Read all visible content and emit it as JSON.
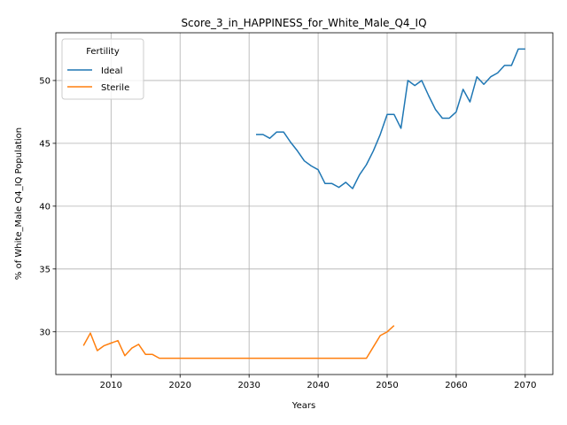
{
  "chart_data": {
    "type": "line",
    "title": "Score_3_in_HAPPINESS_for_White_Male_Q4_IQ",
    "xlabel": "Years",
    "ylabel": "% of White_Male Q4_IQ Population",
    "xlim": [
      2002,
      2074
    ],
    "ylim": [
      26.6,
      53.8
    ],
    "xticks": [
      2010,
      2020,
      2030,
      2040,
      2050,
      2060,
      2070
    ],
    "yticks": [
      30,
      35,
      40,
      45,
      50
    ],
    "grid": true,
    "legend": {
      "title": "Fertility",
      "placement": "top-left"
    },
    "colors": {
      "Ideal": "#1f77b4",
      "Sterile": "#ff7f0e"
    },
    "series": [
      {
        "name": "Ideal",
        "x": [
          2031,
          2032,
          2033,
          2034,
          2035,
          2036,
          2037,
          2038,
          2039,
          2040,
          2041,
          2042,
          2043,
          2044,
          2045,
          2046,
          2047,
          2048,
          2049,
          2050,
          2051,
          2052,
          2053,
          2054,
          2055,
          2056,
          2057,
          2058,
          2059,
          2060,
          2061,
          2062,
          2063,
          2064,
          2065,
          2066,
          2067,
          2068,
          2069,
          2070
        ],
        "y": [
          45.7,
          45.7,
          45.4,
          45.9,
          45.9,
          45.1,
          44.4,
          43.6,
          43.2,
          42.9,
          41.8,
          41.8,
          41.5,
          41.9,
          41.4,
          42.5,
          43.3,
          44.4,
          45.7,
          47.3,
          47.3,
          46.2,
          50.0,
          49.6,
          50.0,
          48.8,
          47.7,
          47.0,
          47.0,
          47.5,
          49.3,
          48.3,
          50.3,
          49.7,
          50.3,
          50.6,
          51.2,
          51.2,
          52.5,
          52.5
        ]
      },
      {
        "name": "Sterile",
        "x": [
          2006,
          2007,
          2008,
          2009,
          2010,
          2011,
          2012,
          2013,
          2014,
          2015,
          2016,
          2017,
          2018,
          2019,
          2020,
          2021,
          2022,
          2023,
          2024,
          2025,
          2026,
          2027,
          2028,
          2029,
          2030,
          2031,
          2032,
          2033,
          2034,
          2035,
          2036,
          2037,
          2038,
          2039,
          2040,
          2041,
          2042,
          2043,
          2044,
          2045,
          2046,
          2047,
          2048,
          2049,
          2050,
          2051
        ],
        "y": [
          28.9,
          29.9,
          28.5,
          28.9,
          29.1,
          29.3,
          28.1,
          28.7,
          29.0,
          28.2,
          28.2,
          27.9,
          27.9,
          27.9,
          27.9,
          27.9,
          27.9,
          27.9,
          27.9,
          27.9,
          27.9,
          27.9,
          27.9,
          27.9,
          27.9,
          27.9,
          27.9,
          27.9,
          27.9,
          27.9,
          27.9,
          27.9,
          27.9,
          27.9,
          27.9,
          27.9,
          27.9,
          27.9,
          27.9,
          27.9,
          27.9,
          27.9,
          28.8,
          29.7,
          30.0,
          30.5
        ]
      }
    ]
  }
}
